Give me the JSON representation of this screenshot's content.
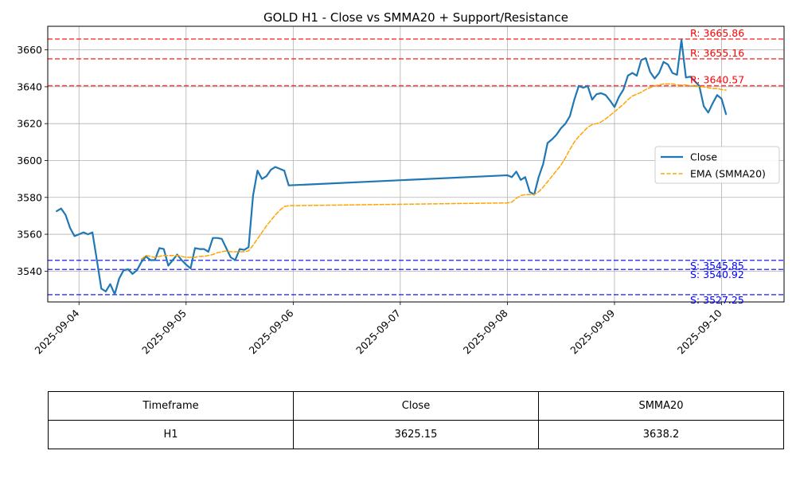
{
  "chart_data": {
    "type": "line",
    "title": "GOLD H1 - Close vs SMMA20 + Support/Resistance",
    "xlabel": "",
    "ylabel": "",
    "x_ticks": [
      "2025-09-04",
      "2025-09-05",
      "2025-09-06",
      "2025-09-07",
      "2025-09-08",
      "2025-09-09",
      "2025-09-10"
    ],
    "y_ticks": [
      3540,
      3560,
      3580,
      3600,
      3620,
      3640,
      3660
    ],
    "xlim": [
      "2025-09-03 17:00",
      "2025-09-10 14:00"
    ],
    "ylim": [
      3523.3,
      3672.8
    ],
    "grid": true,
    "legend_position": "center right",
    "series": [
      {
        "name": "Close",
        "color": "#1f77b4",
        "style": "solid",
        "points": [
          [
            "2025-09-03 19:00",
            3572.5
          ],
          [
            "2025-09-03 20:00",
            3574.0
          ],
          [
            "2025-09-03 21:00",
            3570.5
          ],
          [
            "2025-09-03 22:00",
            3563.5
          ],
          [
            "2025-09-03 23:00",
            3559.0
          ],
          [
            "2025-09-04 00:00",
            3560.0
          ],
          [
            "2025-09-04 01:00",
            3561.0
          ],
          [
            "2025-09-04 02:00",
            3560.0
          ],
          [
            "2025-09-04 03:00",
            3561.0
          ],
          [
            "2025-09-04 04:00",
            3546.0
          ],
          [
            "2025-09-04 05:00",
            3530.5
          ],
          [
            "2025-09-04 06:00",
            3529.0
          ],
          [
            "2025-09-04 07:00",
            3533.0
          ],
          [
            "2025-09-04 08:00",
            3527.5
          ],
          [
            "2025-09-04 09:00",
            3536.0
          ],
          [
            "2025-09-04 10:00",
            3540.5
          ],
          [
            "2025-09-04 11:00",
            3541.0
          ],
          [
            "2025-09-04 12:00",
            3538.5
          ],
          [
            "2025-09-04 13:00",
            3540.5
          ],
          [
            "2025-09-04 14:00",
            3545.0
          ],
          [
            "2025-09-04 15:00",
            3548.0
          ],
          [
            "2025-09-04 16:00",
            3546.0
          ],
          [
            "2025-09-04 17:00",
            3546.0
          ],
          [
            "2025-09-04 18:00",
            3552.5
          ],
          [
            "2025-09-04 19:00",
            3552.0
          ],
          [
            "2025-09-04 20:00",
            3543.0
          ],
          [
            "2025-09-04 21:00",
            3546.0
          ],
          [
            "2025-09-04 22:00",
            3549.0
          ],
          [
            "2025-09-04 23:00",
            3546.0
          ],
          [
            "2025-09-05 00:00",
            3543.5
          ],
          [
            "2025-09-05 01:00",
            3541.5
          ],
          [
            "2025-09-05 02:00",
            3552.5
          ],
          [
            "2025-09-05 03:00",
            3552.0
          ],
          [
            "2025-09-05 04:00",
            3552.0
          ],
          [
            "2025-09-05 05:00",
            3550.5
          ],
          [
            "2025-09-05 06:00",
            3558.0
          ],
          [
            "2025-09-05 07:00",
            3558.0
          ],
          [
            "2025-09-05 08:00",
            3557.5
          ],
          [
            "2025-09-05 09:00",
            3552.5
          ],
          [
            "2025-09-05 10:00",
            3547.5
          ],
          [
            "2025-09-05 11:00",
            3546.0
          ],
          [
            "2025-09-05 12:00",
            3552.0
          ],
          [
            "2025-09-05 13:00",
            3551.5
          ],
          [
            "2025-09-05 14:00",
            3553.0
          ],
          [
            "2025-09-05 15:00",
            3581.0
          ],
          [
            "2025-09-05 16:00",
            3594.5
          ],
          [
            "2025-09-05 17:00",
            3590.0
          ],
          [
            "2025-09-05 18:00",
            3591.5
          ],
          [
            "2025-09-05 19:00",
            3595.0
          ],
          [
            "2025-09-05 20:00",
            3596.5
          ],
          [
            "2025-09-05 21:00",
            3595.5
          ],
          [
            "2025-09-05 22:00",
            3594.5
          ],
          [
            "2025-09-05 23:00",
            3586.5
          ],
          [
            "2025-09-08 00:00",
            3592.0
          ],
          [
            "2025-09-08 01:00",
            3591.0
          ],
          [
            "2025-09-08 02:00",
            3594.0
          ],
          [
            "2025-09-08 03:00",
            3589.5
          ],
          [
            "2025-09-08 04:00",
            3591.0
          ],
          [
            "2025-09-08 05:00",
            3583.0
          ],
          [
            "2025-09-08 06:00",
            3581.5
          ],
          [
            "2025-09-08 07:00",
            3591.0
          ],
          [
            "2025-09-08 08:00",
            3598.0
          ],
          [
            "2025-09-08 09:00",
            3609.5
          ],
          [
            "2025-09-08 10:00",
            3611.5
          ],
          [
            "2025-09-08 11:00",
            3614.0
          ],
          [
            "2025-09-08 12:00",
            3617.5
          ],
          [
            "2025-09-08 13:00",
            3620.0
          ],
          [
            "2025-09-08 14:00",
            3624.0
          ],
          [
            "2025-09-08 15:00",
            3633.0
          ],
          [
            "2025-09-08 16:00",
            3640.5
          ],
          [
            "2025-09-08 17:00",
            3639.5
          ],
          [
            "2025-09-08 18:00",
            3640.5
          ],
          [
            "2025-09-08 19:00",
            3633.0
          ],
          [
            "2025-09-08 20:00",
            3636.0
          ],
          [
            "2025-09-08 21:00",
            3636.5
          ],
          [
            "2025-09-08 22:00",
            3635.5
          ],
          [
            "2025-09-08 23:00",
            3632.5
          ],
          [
            "2025-09-09 00:00",
            3629.0
          ],
          [
            "2025-09-09 01:00",
            3634.5
          ],
          [
            "2025-09-09 02:00",
            3638.5
          ],
          [
            "2025-09-09 03:00",
            3646.0
          ],
          [
            "2025-09-09 04:00",
            3647.5
          ],
          [
            "2025-09-09 05:00",
            3646.0
          ],
          [
            "2025-09-09 06:00",
            3654.5
          ],
          [
            "2025-09-09 07:00",
            3655.5
          ],
          [
            "2025-09-09 08:00",
            3648.0
          ],
          [
            "2025-09-09 09:00",
            3644.5
          ],
          [
            "2025-09-09 10:00",
            3647.5
          ],
          [
            "2025-09-09 11:00",
            3653.5
          ],
          [
            "2025-09-09 12:00",
            3652.0
          ],
          [
            "2025-09-09 13:00",
            3647.5
          ],
          [
            "2025-09-09 14:00",
            3646.5
          ],
          [
            "2025-09-09 15:00",
            3665.5
          ],
          [
            "2025-09-09 16:00",
            3645.0
          ],
          [
            "2025-09-09 17:00",
            3645.5
          ],
          [
            "2025-09-09 18:00",
            3643.0
          ],
          [
            "2025-09-09 19:00",
            3640.5
          ],
          [
            "2025-09-09 20:00",
            3629.5
          ],
          [
            "2025-09-09 21:00",
            3626.0
          ],
          [
            "2025-09-09 22:00",
            3631.0
          ],
          [
            "2025-09-09 23:00",
            3635.5
          ],
          [
            "2025-09-10 00:00",
            3633.5
          ],
          [
            "2025-09-10 01:00",
            3625.15
          ]
        ]
      },
      {
        "name": "EMA (SMMA20)",
        "color": "#ffa500",
        "style": "dashed",
        "points": [
          [
            "2025-09-04 14:00",
            3546.5
          ],
          [
            "2025-09-04 15:00",
            3548.5
          ],
          [
            "2025-09-04 16:00",
            3548.0
          ],
          [
            "2025-09-04 17:00",
            3547.5
          ],
          [
            "2025-09-04 18:00",
            3548.0
          ],
          [
            "2025-09-04 19:00",
            3548.5
          ],
          [
            "2025-09-04 20:00",
            3548.5
          ],
          [
            "2025-09-04 21:00",
            3548.5
          ],
          [
            "2025-09-04 22:00",
            3548.5
          ],
          [
            "2025-09-04 23:00",
            3548.0
          ],
          [
            "2025-09-05 00:00",
            3547.5
          ],
          [
            "2025-09-05 01:00",
            3547.5
          ],
          [
            "2025-09-05 02:00",
            3547.5
          ],
          [
            "2025-09-05 03:00",
            3548.0
          ],
          [
            "2025-09-05 04:00",
            3548.0
          ],
          [
            "2025-09-05 05:00",
            3548.5
          ],
          [
            "2025-09-05 06:00",
            3549.0
          ],
          [
            "2025-09-05 07:00",
            3550.0
          ],
          [
            "2025-09-05 08:00",
            3550.5
          ],
          [
            "2025-09-05 09:00",
            3551.0
          ],
          [
            "2025-09-05 10:00",
            3550.5
          ],
          [
            "2025-09-05 11:00",
            3550.5
          ],
          [
            "2025-09-05 12:00",
            3550.5
          ],
          [
            "2025-09-05 13:00",
            3550.5
          ],
          [
            "2025-09-05 14:00",
            3551.0
          ],
          [
            "2025-09-05 15:00",
            3554.0
          ],
          [
            "2025-09-05 16:00",
            3557.5
          ],
          [
            "2025-09-05 17:00",
            3561.0
          ],
          [
            "2025-09-05 18:00",
            3564.5
          ],
          [
            "2025-09-05 19:00",
            3567.5
          ],
          [
            "2025-09-05 20:00",
            3570.5
          ],
          [
            "2025-09-05 21:00",
            3573.0
          ],
          [
            "2025-09-05 22:00",
            3575.0
          ],
          [
            "2025-09-05 23:00",
            3575.5
          ],
          [
            "2025-09-08 00:00",
            3577.0
          ],
          [
            "2025-09-08 01:00",
            3577.5
          ],
          [
            "2025-09-08 02:00",
            3579.5
          ],
          [
            "2025-09-08 03:00",
            3581.0
          ],
          [
            "2025-09-08 04:00",
            3581.5
          ],
          [
            "2025-09-08 05:00",
            3581.5
          ],
          [
            "2025-09-08 06:00",
            3581.5
          ],
          [
            "2025-09-08 07:00",
            3583.0
          ],
          [
            "2025-09-08 08:00",
            3585.5
          ],
          [
            "2025-09-08 09:00",
            3588.5
          ],
          [
            "2025-09-08 10:00",
            3591.5
          ],
          [
            "2025-09-08 11:00",
            3594.5
          ],
          [
            "2025-09-08 12:00",
            3597.5
          ],
          [
            "2025-09-08 13:00",
            3601.5
          ],
          [
            "2025-09-08 14:00",
            3606.0
          ],
          [
            "2025-09-08 15:00",
            3610.0
          ],
          [
            "2025-09-08 16:00",
            3613.0
          ],
          [
            "2025-09-08 17:00",
            3615.5
          ],
          [
            "2025-09-08 18:00",
            3618.0
          ],
          [
            "2025-09-08 19:00",
            3619.5
          ],
          [
            "2025-09-08 20:00",
            3620.0
          ],
          [
            "2025-09-08 21:00",
            3621.0
          ],
          [
            "2025-09-08 22:00",
            3622.5
          ],
          [
            "2025-09-08 23:00",
            3624.5
          ],
          [
            "2025-09-09 00:00",
            3626.5
          ],
          [
            "2025-09-09 01:00",
            3628.5
          ],
          [
            "2025-09-09 02:00",
            3630.5
          ],
          [
            "2025-09-09 03:00",
            3633.0
          ],
          [
            "2025-09-09 04:00",
            3635.0
          ],
          [
            "2025-09-09 05:00",
            3636.0
          ],
          [
            "2025-09-09 06:00",
            3637.0
          ],
          [
            "2025-09-09 07:00",
            3638.5
          ],
          [
            "2025-09-09 08:00",
            3639.5
          ],
          [
            "2025-09-09 09:00",
            3640.5
          ],
          [
            "2025-09-09 10:00",
            3641.0
          ],
          [
            "2025-09-09 11:00",
            3641.5
          ],
          [
            "2025-09-09 12:00",
            3641.5
          ],
          [
            "2025-09-09 13:00",
            3641.5
          ],
          [
            "2025-09-09 14:00",
            3641.0
          ],
          [
            "2025-09-09 15:00",
            3641.0
          ],
          [
            "2025-09-09 16:00",
            3641.0
          ],
          [
            "2025-09-09 17:00",
            3640.5
          ],
          [
            "2025-09-09 18:00",
            3640.5
          ],
          [
            "2025-09-09 19:00",
            3640.0
          ],
          [
            "2025-09-09 20:00",
            3640.0
          ],
          [
            "2025-09-09 21:00",
            3639.5
          ],
          [
            "2025-09-09 22:00",
            3639.0
          ],
          [
            "2025-09-09 23:00",
            3639.0
          ],
          [
            "2025-09-10 00:00",
            3638.5
          ],
          [
            "2025-09-10 01:00",
            3638.2
          ]
        ]
      }
    ],
    "hlines": [
      {
        "label": "R: 3665.86",
        "value": 3665.86,
        "color": "#ff0000",
        "kind": "resistance"
      },
      {
        "label": "R: 3655.16",
        "value": 3655.16,
        "color": "#ff0000",
        "kind": "resistance"
      },
      {
        "label": "R: 3640.57",
        "value": 3640.57,
        "color": "#ff0000",
        "kind": "resistance"
      },
      {
        "label": "S: 3545.85",
        "value": 3545.85,
        "color": "#0000ff",
        "kind": "support"
      },
      {
        "label": "S: 3540.92",
        "value": 3540.92,
        "color": "#0000ff",
        "kind": "support"
      },
      {
        "label": "S: 3527.25",
        "value": 3527.25,
        "color": "#0000ff",
        "kind": "support"
      }
    ]
  },
  "table": {
    "headers": [
      "Timeframe",
      "Close",
      "SMMA20"
    ],
    "rows": [
      [
        "H1",
        "3625.15",
        "3638.2"
      ]
    ]
  }
}
